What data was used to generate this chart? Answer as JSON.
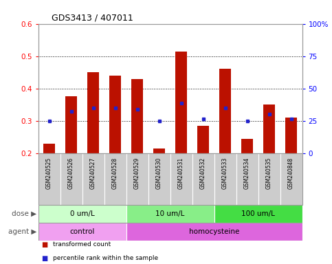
{
  "title": "GDS3413 / 407011",
  "samples": [
    "GSM240525",
    "GSM240526",
    "GSM240527",
    "GSM240528",
    "GSM240529",
    "GSM240530",
    "GSM240531",
    "GSM240532",
    "GSM240533",
    "GSM240534",
    "GSM240535",
    "GSM240848"
  ],
  "transformed_count": [
    0.23,
    0.375,
    0.45,
    0.44,
    0.43,
    0.215,
    0.515,
    0.285,
    0.46,
    0.245,
    0.35,
    0.31
  ],
  "percentile_rank_y": [
    0.3,
    0.33,
    0.34,
    0.34,
    0.335,
    0.3,
    0.355,
    0.305,
    0.34,
    0.3,
    0.32,
    0.305
  ],
  "bar_bottom": 0.2,
  "ylim": [
    0.2,
    0.6
  ],
  "yticks": [
    0.2,
    0.3,
    0.4,
    0.5,
    0.6
  ],
  "y2labels": [
    "0",
    "25",
    "50",
    "75",
    "100%"
  ],
  "y2tick_vals": [
    0.2,
    0.3,
    0.4,
    0.5,
    0.6
  ],
  "bar_color": "#bb1100",
  "dot_color": "#2222cc",
  "dose_groups": [
    {
      "label": "0 um/L",
      "start": 0,
      "end": 4,
      "color": "#ccffcc"
    },
    {
      "label": "10 um/L",
      "start": 4,
      "end": 8,
      "color": "#88ee88"
    },
    {
      "label": "100 um/L",
      "start": 8,
      "end": 12,
      "color": "#44dd44"
    }
  ],
  "agent_groups": [
    {
      "label": "control",
      "start": 0,
      "end": 4,
      "color": "#f0a0f0"
    },
    {
      "label": "homocysteine",
      "start": 4,
      "end": 12,
      "color": "#dd66dd"
    }
  ],
  "dose_label": "dose",
  "agent_label": "agent",
  "legend_items": [
    {
      "label": "transformed count",
      "color": "#bb1100"
    },
    {
      "label": "percentile rank within the sample",
      "color": "#2222cc"
    }
  ],
  "bar_width": 0.55,
  "sample_bg_color": "#cccccc",
  "sample_border_color": "#ffffff",
  "spine_color": "#999999"
}
